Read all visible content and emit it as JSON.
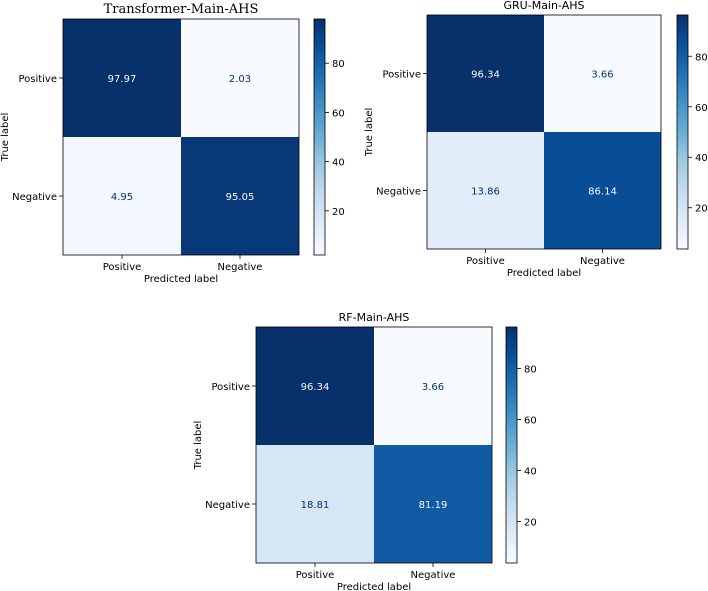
{
  "chart_data": [
    {
      "type": "heatmap",
      "title": "Transformer-Main-AHS",
      "xlabel": "Predicted label",
      "ylabel": "True label",
      "x_categories": [
        "Positive",
        "Negative"
      ],
      "y_categories": [
        "Positive",
        "Negative"
      ],
      "values": [
        [
          97.97,
          2.03
        ],
        [
          4.95,
          95.05
        ]
      ],
      "value_labels": [
        [
          "97.97",
          "2.03"
        ],
        [
          "4.95",
          "95.05"
        ]
      ],
      "colorbar": {
        "range": [
          2.03,
          97.97
        ],
        "ticks": [
          20,
          40,
          60,
          80
        ],
        "tick_labels": [
          "20",
          "40",
          "60",
          "80"
        ]
      },
      "colormap": "Blues"
    },
    {
      "type": "heatmap",
      "title": "GRU-Main-AHS",
      "xlabel": "Predicted label",
      "ylabel": "True label",
      "x_categories": [
        "Positive",
        "Negative"
      ],
      "y_categories": [
        "Positive",
        "Negative"
      ],
      "values": [
        [
          96.34,
          3.66
        ],
        [
          13.86,
          86.14
        ]
      ],
      "value_labels": [
        [
          "96.34",
          "3.66"
        ],
        [
          "13.86",
          "86.14"
        ]
      ],
      "colorbar": {
        "range": [
          3.66,
          96.34
        ],
        "ticks": [
          20,
          40,
          60,
          80
        ],
        "tick_labels": [
          "20",
          "40",
          "60",
          "80"
        ]
      },
      "colormap": "Blues"
    },
    {
      "type": "heatmap",
      "title": "RF-Main-AHS",
      "xlabel": "Predicted label",
      "ylabel": "True label",
      "x_categories": [
        "Positive",
        "Negative"
      ],
      "y_categories": [
        "Positive",
        "Negative"
      ],
      "values": [
        [
          96.34,
          3.66
        ],
        [
          18.81,
          81.19
        ]
      ],
      "value_labels": [
        [
          "96.34",
          "3.66"
        ],
        [
          "18.81",
          "81.19"
        ]
      ],
      "colorbar": {
        "range": [
          3.66,
          96.34
        ],
        "ticks": [
          20,
          40,
          60,
          80
        ],
        "tick_labels": [
          "20",
          "40",
          "60",
          "80"
        ]
      },
      "colormap": "Blues"
    }
  ],
  "colors": {
    "cmap_low": "#f7fbff",
    "cmap_high": "#08306b",
    "text_light": "#f7fbff",
    "text_dark": "#08306b",
    "axis": "#000000"
  }
}
